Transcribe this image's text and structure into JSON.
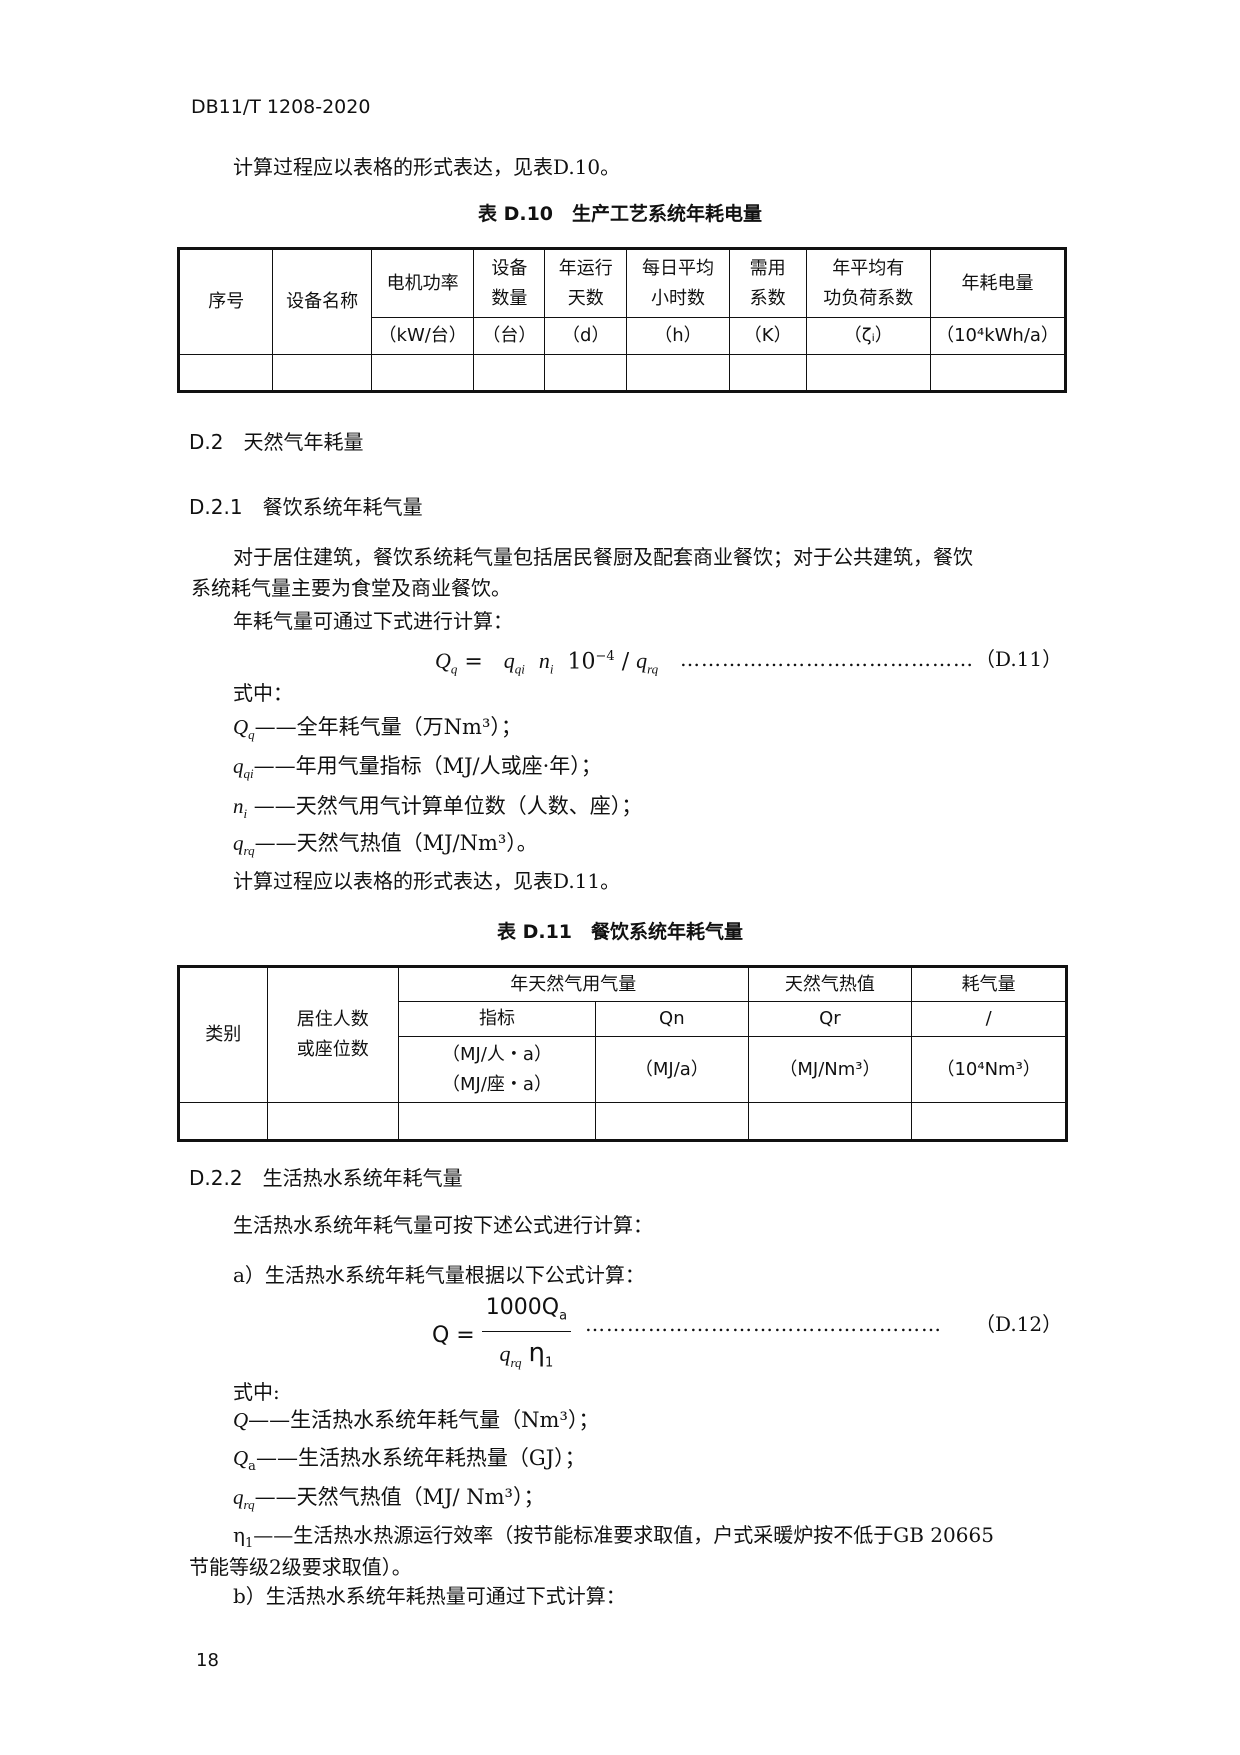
{
  "header": "DB11/T 1208-2020",
  "intro_line": "计算过程应以表格的形式表达，见表D.10。",
  "table_d10": {
    "title": "表 D.10　生产工艺系统年耗电量",
    "headers": [
      "序号",
      "设备名称",
      "电机功率",
      "设备数量",
      "年运行天数",
      "每日平均小时数",
      "需用系数",
      "年平均有功负荷系数",
      "年耗电量"
    ],
    "header_lines": {
      "c3": [
        "设备",
        "数量"
      ],
      "c4": [
        "年运行",
        "天数"
      ],
      "c5": [
        "每日平均",
        "小时数"
      ],
      "c6": [
        "需用",
        "系数"
      ],
      "c7": [
        "年平均有",
        "功负荷系数"
      ]
    },
    "units": [
      "（kW/台）",
      "（台）",
      "（d）",
      "（h）",
      "（K）",
      "（ζᵢ）",
      "（10⁴kWh/a）"
    ]
  },
  "section_d2": "D.2　天然气年耗量",
  "section_d21": "D.2.1　餐饮系统年耗气量",
  "para1_line1": "对于居住建筑，餐饮系统耗气量包括居民餐厨及配套商业餐饮；对于公共建筑，餐饮",
  "para1_line2": "系统耗气量主要为食堂及商业餐饮。",
  "para2": "年耗气量可通过下式进行计算：",
  "formula_d11": {
    "text": "Qq = qqi ni 10⁻⁴ / qrq",
    "dots": "……………………………………",
    "number": "（D.11）"
  },
  "where1": "式中：",
  "defs1": [
    {
      "sym": "Q",
      "sub": "q",
      "text": "——全年耗气量（万Nm³）；"
    },
    {
      "sym": "q",
      "sub": "qi",
      "text": "——年用气量指标（MJ/人或座·年）；"
    },
    {
      "sym": "n",
      "sub": "i",
      "text": " ——天然气用气计算单位数（人数、座）；"
    },
    {
      "sym": "q",
      "sub": "rq",
      "text": "——天然气热值（MJ/Nm³）。"
    }
  ],
  "line_see_d11": "计算过程应以表格的形式表达，见表D.11。",
  "table_d11": {
    "title": "表 D.11　餐饮系统年耗气量",
    "c1": "类别",
    "c2": [
      "居住人数",
      "或座位数"
    ],
    "group": "年天然气用气量",
    "heat": "天然气热值",
    "consumption": "耗气量",
    "row2": [
      "指标",
      "Qn",
      "Qr",
      "/"
    ],
    "unit_index": [
      "（MJ/人・a）",
      "（MJ/座・a）"
    ],
    "units": [
      "（MJ/a）",
      "（MJ/Nm³）",
      "（10⁴Nm³）"
    ]
  },
  "section_d22": "D.2.2　生活热水系统年耗气量",
  "para3": "生活热水系统年耗气量可按下述公式进行计算：",
  "item_a": "a）生活热水系统年耗气量根据以下公式计算：",
  "formula_d12": {
    "lhs": "Q =",
    "num": "1000Q",
    "num_sub": "a",
    "den": "q",
    "den_sub": "rq",
    "eta": "η",
    "eta_sub": "1",
    "dots": "……………………………………………",
    "number": "（D.12）"
  },
  "where2": "式中:",
  "defs2": [
    {
      "sym": "Q",
      "sub": "",
      "text": "——生活热水系统年耗气量（Nm³）；"
    },
    {
      "sym": "Q",
      "sub": "a",
      "text": "——生活热水系统年耗热量（GJ）；"
    },
    {
      "sym": "q",
      "sub": "rq",
      "text": "——天然气热值（MJ/ Nm³）；"
    },
    {
      "sym": "η",
      "sub": "1",
      "text": "——生活热水热源运行效率（按节能标准要求取值，户式采暖炉按不低于GB 20665"
    }
  ],
  "defs2_cont": "节能等级2级要求取值）。",
  "item_b": "b）生活热水系统年耗热量可通过下式计算：",
  "page_number": "18"
}
